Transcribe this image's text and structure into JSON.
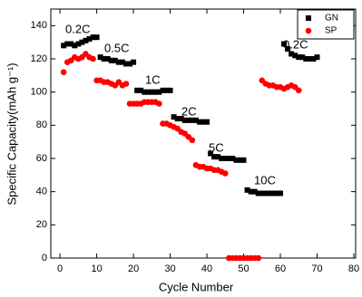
{
  "chart_data": {
    "type": "scatter",
    "xlabel": "Cycle Number",
    "ylabel": "Specific Capacity(mAh g⁻¹)",
    "xlim": [
      -2.5,
      80.5
    ],
    "ylim": [
      0,
      150
    ],
    "xticks": [
      0,
      10,
      20,
      30,
      40,
      50,
      60,
      70,
      80
    ],
    "yticks": [
      0,
      20,
      40,
      60,
      80,
      100,
      120,
      140
    ],
    "legend": "upper right",
    "annotations": [
      "0.2C",
      "0.5C",
      "1C",
      "2C",
      "5C",
      "10C",
      "0.2C"
    ],
    "series": [
      {
        "name": "GN",
        "color": "#000000",
        "marker": "square",
        "x": [
          1,
          2,
          3,
          4,
          5,
          6,
          7,
          8,
          9,
          10,
          11,
          12,
          13,
          14,
          15,
          16,
          17,
          18,
          19,
          20,
          21,
          22,
          23,
          24,
          25,
          26,
          27,
          28,
          29,
          30,
          31,
          32,
          33,
          34,
          35,
          36,
          37,
          38,
          39,
          40,
          41,
          42,
          43,
          44,
          45,
          46,
          47,
          48,
          49,
          50,
          51,
          52,
          53,
          54,
          55,
          56,
          57,
          58,
          59,
          60,
          61,
          62,
          63,
          64,
          65,
          66,
          67,
          68,
          69,
          70
        ],
        "values": [
          128,
          129,
          129,
          128,
          129,
          130,
          131,
          132,
          133,
          133,
          121,
          120,
          120,
          119,
          119,
          118,
          118,
          117,
          117,
          118,
          101,
          101,
          100,
          100,
          100,
          100,
          100,
          101,
          101,
          101,
          85,
          84,
          84,
          83,
          83,
          83,
          83,
          82,
          82,
          82,
          63,
          61,
          61,
          60,
          60,
          60,
          60,
          59,
          59,
          59,
          41,
          40,
          40,
          39,
          39,
          39,
          39,
          39,
          39,
          39,
          129,
          126,
          123,
          122,
          121,
          121,
          120,
          120,
          120,
          121
        ]
      },
      {
        "name": "SP",
        "color": "#ff0000",
        "marker": "circle",
        "x": [
          1,
          2,
          3,
          4,
          5,
          6,
          7,
          8,
          9,
          10,
          11,
          12,
          13,
          14,
          15,
          16,
          17,
          18,
          19,
          20,
          21,
          22,
          23,
          24,
          25,
          26,
          27,
          28,
          29,
          30,
          31,
          32,
          33,
          34,
          35,
          36,
          37,
          38,
          39,
          40,
          41,
          42,
          43,
          44,
          45,
          46,
          47,
          48,
          49,
          50,
          51,
          52,
          53,
          54,
          55,
          56,
          57,
          58,
          59,
          60,
          61,
          62,
          63,
          64,
          65
        ],
        "values": [
          112,
          118,
          119,
          121,
          120,
          121,
          123,
          121,
          120,
          107,
          107,
          106,
          106,
          105,
          104,
          106,
          104,
          105,
          93,
          93,
          93,
          93,
          94,
          94,
          94,
          94,
          93,
          81,
          81,
          80,
          79,
          78,
          76,
          75,
          73,
          71,
          56,
          55,
          55,
          54,
          54,
          53,
          53,
          52,
          51,
          0,
          0,
          0,
          0,
          0,
          0,
          0,
          0,
          0,
          107,
          105,
          104,
          104,
          103,
          103,
          102,
          103,
          104,
          103,
          101
        ]
      }
    ]
  }
}
